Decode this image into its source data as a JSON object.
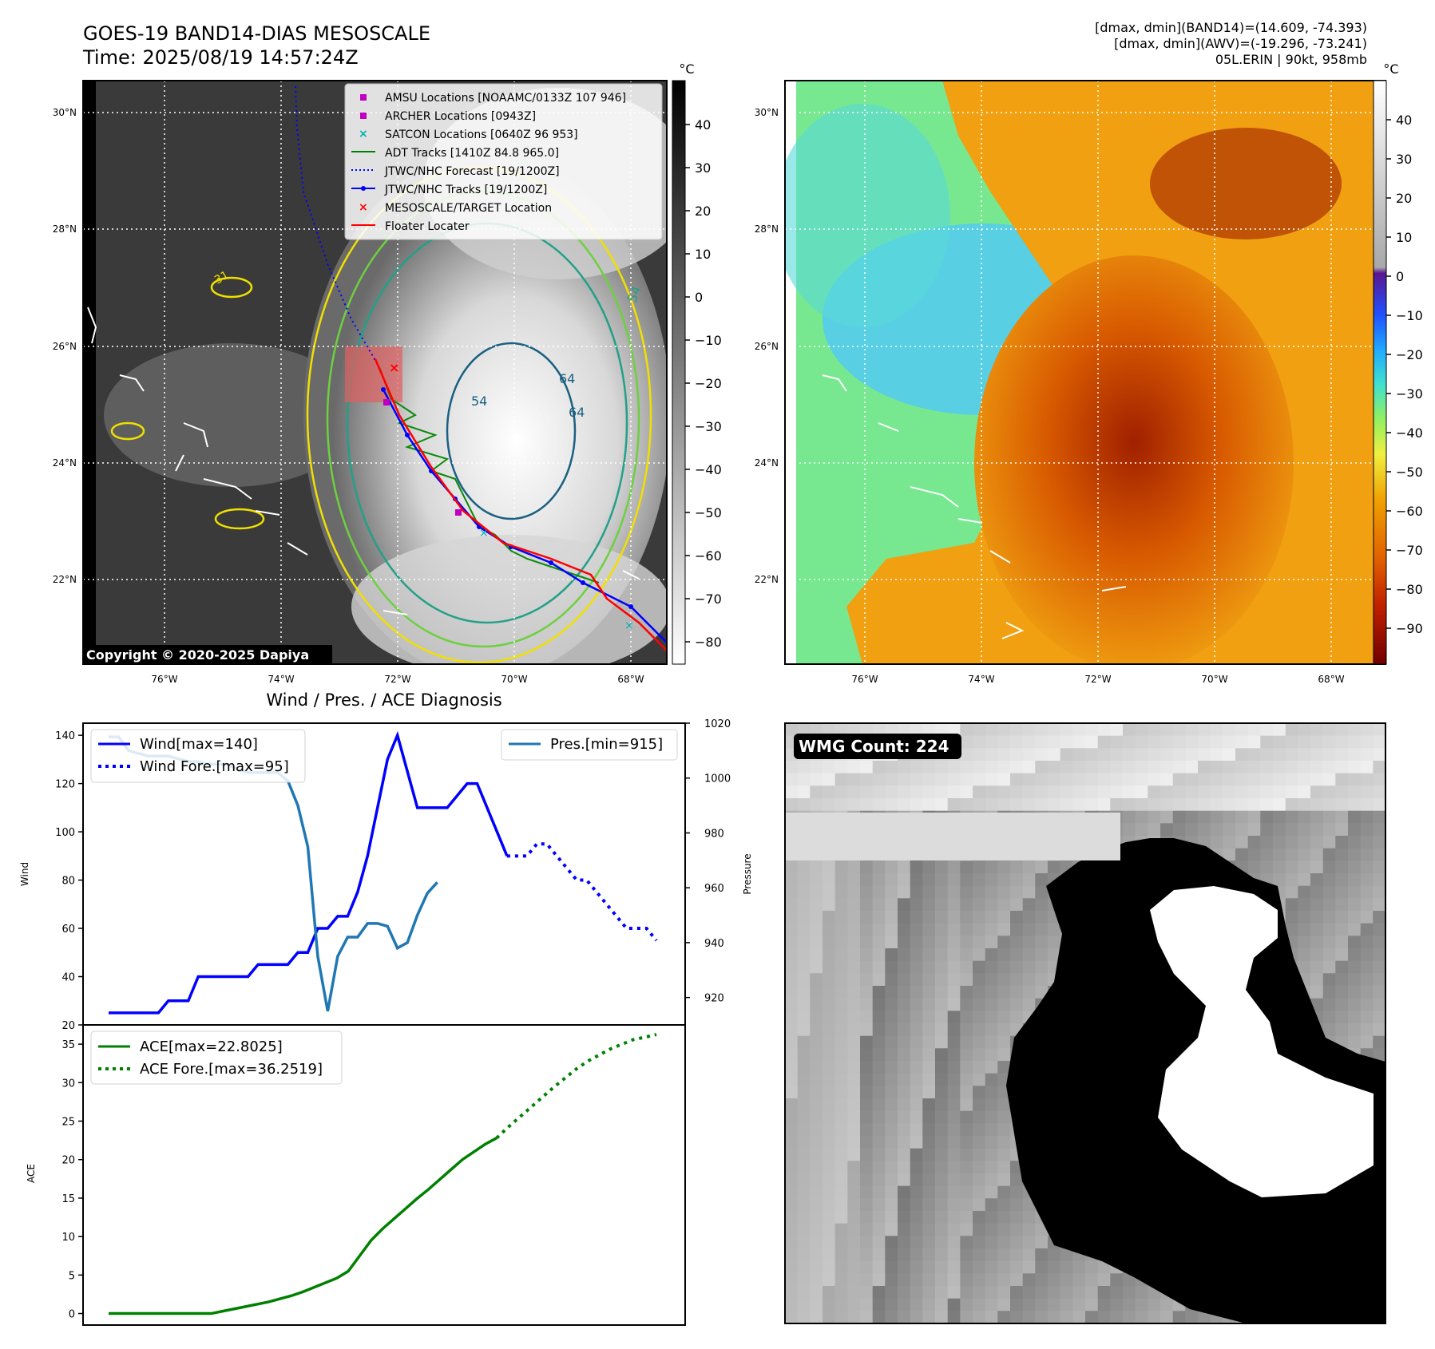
{
  "header": {
    "title_line1": "GOES-19 BAND14-DIAS MESOSCALE",
    "title_line2": "Time: 2025/08/19 14:57:24Z",
    "stats_line1": "[dmax, dmin](BAND14)=(14.609, -74.393)",
    "stats_line2": "[dmax, dmin](AWV)=(-19.296, -73.241)",
    "stats_line3": "05L.ERIN | 90kt, 958mb"
  },
  "maps": {
    "lat_labels": [
      "30°N",
      "28°N",
      "26°N",
      "24°N",
      "22°N"
    ],
    "lon_labels": [
      "76°W",
      "74°W",
      "72°W",
      "70°W",
      "68°W"
    ],
    "colorbar_unit": "°C",
    "left_colorbar_ticks": [
      "40",
      "30",
      "20",
      "10",
      "0",
      "−10",
      "−20",
      "−30",
      "−40",
      "−50",
      "−60",
      "−70",
      "−80"
    ],
    "right_colorbar_ticks": [
      "40",
      "30",
      "20",
      "10",
      "0",
      "−10",
      "−20",
      "−30",
      "−40",
      "−50",
      "−60",
      "−70",
      "−80",
      "−90"
    ],
    "copyright": "Copyright © 2020-2025 Dapiya",
    "contour_labels": [
      "31",
      "54",
      "64",
      "54",
      "64"
    ],
    "legend": [
      {
        "label": "AMSU Locations [NOAAMC/0133Z 107 946]",
        "color": "#c000c0",
        "marker": "square"
      },
      {
        "label": "ARCHER Locations [0943Z]",
        "color": "#c000c0",
        "marker": "square"
      },
      {
        "label": "SATCON Locations [0640Z 96 953]",
        "color": "#00b0b0",
        "marker": "x"
      },
      {
        "label": "ADT Tracks [1410Z 84.8 965.0]",
        "color": "#008000",
        "marker": "line"
      },
      {
        "label": "JTWC/NHC Forecast [19/1200Z]",
        "color": "#0000ff",
        "marker": "dotted"
      },
      {
        "label": "JTWC/NHC Tracks [19/1200Z]",
        "color": "#0000ff",
        "marker": "line-dot"
      },
      {
        "label": "MESOSCALE/TARGET Location",
        "color": "#ff0000",
        "marker": "x"
      },
      {
        "label": "Floater Locater",
        "color": "#ff0000",
        "marker": "line"
      }
    ]
  },
  "wmg": {
    "label": "WMG Count: 224"
  },
  "chart_data": [
    {
      "type": "line",
      "title": "Wind / Pres. / ACE Diagnosis",
      "ylabel": "Wind",
      "ylim": [
        20,
        145
      ],
      "yticks": [
        20,
        40,
        60,
        80,
        100,
        120,
        140
      ],
      "grid": false,
      "series": [
        {
          "name": "Wind[max=140]",
          "color": "#0000ff",
          "style": "solid",
          "values": [
            25,
            25,
            25,
            25,
            25,
            25,
            30,
            30,
            30,
            40,
            40,
            40,
            40,
            40,
            40,
            45,
            45,
            45,
            45,
            50,
            50,
            60,
            60,
            65,
            65,
            75,
            90,
            110,
            130,
            140,
            125,
            110,
            110,
            110,
            110,
            115,
            120,
            120,
            110,
            100,
            90
          ]
        },
        {
          "name": "Wind Fore.[max=95]",
          "color": "#0000ff",
          "style": "dotted",
          "values": [
            90,
            90,
            90,
            95,
            95,
            90,
            85,
            80,
            80,
            75,
            70,
            65,
            60,
            60,
            60,
            55
          ]
        }
      ],
      "secondary": {
        "ylabel": "Pressure",
        "ylim": [
          910,
          1020
        ],
        "yticks": [
          920,
          940,
          960,
          980,
          1000,
          1020
        ],
        "series": [
          {
            "name": "Pres.[min=915]",
            "color": "#1f77b4",
            "style": "solid",
            "values": [
              1015,
              1015,
              1010,
              1009,
              1008,
              1008,
              1008,
              1007,
              1006,
              1006,
              1005,
              1005,
              1005,
              1003,
              1002,
              1002,
              1002,
              1002,
              999,
              990,
              975,
              935,
              915,
              935,
              942,
              942,
              947,
              947,
              946,
              938,
              940,
              950,
              958,
              962
            ]
          }
        ]
      },
      "legend": [
        "upper-left",
        "upper-right"
      ]
    },
    {
      "type": "line",
      "ylabel": "ACE",
      "ylim": [
        -1.5,
        37.5
      ],
      "yticks": [
        0,
        5,
        10,
        15,
        20,
        25,
        30,
        35
      ],
      "grid": false,
      "series": [
        {
          "name": "ACE[max=22.8025]",
          "color": "#008000",
          "style": "solid",
          "values": [
            0,
            0,
            0,
            0,
            0,
            0,
            0,
            0,
            0,
            0,
            0.3,
            0.6,
            0.9,
            1.2,
            1.5,
            1.9,
            2.3,
            2.8,
            3.4,
            4.0,
            4.6,
            5.5,
            7.5,
            9.5,
            11.0,
            12.3,
            13.6,
            14.9,
            16.1,
            17.4,
            18.7,
            20.0,
            21.0,
            22.0,
            22.8
          ]
        },
        {
          "name": "ACE Fore.[max=36.2519]",
          "color": "#008000",
          "style": "dotted",
          "values": [
            22.8,
            24.2,
            25.5,
            26.8,
            28.1,
            29.4,
            30.6,
            31.8,
            32.8,
            33.6,
            34.4,
            35.0,
            35.6,
            35.9,
            36.25
          ]
        }
      ],
      "legend": [
        "upper-left"
      ]
    }
  ]
}
